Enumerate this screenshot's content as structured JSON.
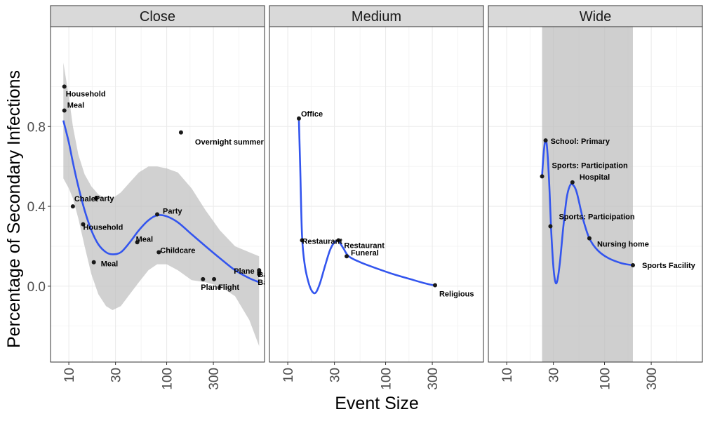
{
  "chart_data": {
    "type": "scatter",
    "xlabel": "Event Size",
    "ylabel": "Percentage of Secondary Infections",
    "x_scale": "log10",
    "xlim": [
      6.5,
      1000
    ],
    "ylim": [
      -0.38,
      1.3
    ],
    "x_ticks": [
      10,
      30,
      100,
      300
    ],
    "x_tick_labels": [
      "10",
      "30",
      "100",
      "300"
    ],
    "y_ticks": [
      0.0,
      0.4,
      0.8
    ],
    "y_tick_labels": [
      "0.0",
      "0.4",
      "0.8"
    ],
    "colors": {
      "smooth": "#3355ee",
      "ribbon": "#bdbdbd",
      "point": "#1a1a1a",
      "strip_bg": "#d9d9d9",
      "grid": "#ebebeb"
    },
    "panels": [
      {
        "title": "Close",
        "points": [
          {
            "x": 9,
            "y": 1.0,
            "label": "Household"
          },
          {
            "x": 9,
            "y": 0.88,
            "label": "Meal"
          },
          {
            "x": 140,
            "y": 0.77,
            "label": "Overnight summer camp"
          },
          {
            "x": 19,
            "y": 0.44,
            "label": "Party"
          },
          {
            "x": 11,
            "y": 0.4,
            "label": "Chalet"
          },
          {
            "x": 14,
            "y": 0.31,
            "label": "Household"
          },
          {
            "x": 80,
            "y": 0.36,
            "label": "Party"
          },
          {
            "x": 50,
            "y": 0.22,
            "label": "Meal"
          },
          {
            "x": 83,
            "y": 0.17,
            "label": "Childcare"
          },
          {
            "x": 18,
            "y": 0.12,
            "label": "Meal"
          },
          {
            "x": 235,
            "y": 0.035,
            "label": "Plane"
          },
          {
            "x": 305,
            "y": 0.035,
            "label": "Flight"
          },
          {
            "x": 880,
            "y": 0.08,
            "label": "Plane"
          },
          {
            "x": 880,
            "y": 0.07,
            "label": "Bar"
          },
          {
            "x": 880,
            "y": 0.06,
            "label": "Bar"
          }
        ],
        "smooth": [
          {
            "x": 8.8,
            "y": 0.83
          },
          {
            "x": 10,
            "y": 0.72
          },
          {
            "x": 11,
            "y": 0.62
          },
          {
            "x": 12.5,
            "y": 0.5
          },
          {
            "x": 14.5,
            "y": 0.38
          },
          {
            "x": 17,
            "y": 0.28
          },
          {
            "x": 20,
            "y": 0.21
          },
          {
            "x": 24,
            "y": 0.17
          },
          {
            "x": 28,
            "y": 0.16
          },
          {
            "x": 34,
            "y": 0.17
          },
          {
            "x": 42,
            "y": 0.22
          },
          {
            "x": 52,
            "y": 0.28
          },
          {
            "x": 65,
            "y": 0.33
          },
          {
            "x": 80,
            "y": 0.355
          },
          {
            "x": 100,
            "y": 0.35
          },
          {
            "x": 130,
            "y": 0.32
          },
          {
            "x": 180,
            "y": 0.26
          },
          {
            "x": 250,
            "y": 0.2
          },
          {
            "x": 350,
            "y": 0.14
          },
          {
            "x": 500,
            "y": 0.08
          },
          {
            "x": 700,
            "y": 0.04
          },
          {
            "x": 880,
            "y": 0.02
          }
        ],
        "ribbon_upper": [
          {
            "x": 8.8,
            "y": 1.12
          },
          {
            "x": 10,
            "y": 0.95
          },
          {
            "x": 11,
            "y": 0.8
          },
          {
            "x": 12.5,
            "y": 0.66
          },
          {
            "x": 14.5,
            "y": 0.56
          },
          {
            "x": 17,
            "y": 0.5
          },
          {
            "x": 20,
            "y": 0.46
          },
          {
            "x": 24,
            "y": 0.44
          },
          {
            "x": 28,
            "y": 0.44
          },
          {
            "x": 34,
            "y": 0.47
          },
          {
            "x": 42,
            "y": 0.52
          },
          {
            "x": 52,
            "y": 0.57
          },
          {
            "x": 65,
            "y": 0.6
          },
          {
            "x": 80,
            "y": 0.6
          },
          {
            "x": 100,
            "y": 0.59
          },
          {
            "x": 130,
            "y": 0.57
          },
          {
            "x": 180,
            "y": 0.49
          },
          {
            "x": 250,
            "y": 0.38
          },
          {
            "x": 350,
            "y": 0.28
          },
          {
            "x": 500,
            "y": 0.2
          },
          {
            "x": 700,
            "y": 0.17
          },
          {
            "x": 880,
            "y": 0.15
          }
        ],
        "ribbon_lower": [
          {
            "x": 8.8,
            "y": 0.54
          },
          {
            "x": 10,
            "y": 0.49
          },
          {
            "x": 11,
            "y": 0.44
          },
          {
            "x": 12.5,
            "y": 0.34
          },
          {
            "x": 14.5,
            "y": 0.2
          },
          {
            "x": 17,
            "y": 0.06
          },
          {
            "x": 20,
            "y": -0.04
          },
          {
            "x": 24,
            "y": -0.1
          },
          {
            "x": 28,
            "y": -0.12
          },
          {
            "x": 34,
            "y": -0.1
          },
          {
            "x": 42,
            "y": -0.04
          },
          {
            "x": 52,
            "y": 0.02
          },
          {
            "x": 65,
            "y": 0.08
          },
          {
            "x": 80,
            "y": 0.11
          },
          {
            "x": 100,
            "y": 0.11
          },
          {
            "x": 130,
            "y": 0.08
          },
          {
            "x": 180,
            "y": 0.03
          },
          {
            "x": 250,
            "y": 0.02
          },
          {
            "x": 350,
            "y": 0.0
          },
          {
            "x": 500,
            "y": -0.05
          },
          {
            "x": 700,
            "y": -0.17
          },
          {
            "x": 880,
            "y": -0.3
          }
        ]
      },
      {
        "title": "Medium",
        "points": [
          {
            "x": 13,
            "y": 0.84,
            "label": "Office"
          },
          {
            "x": 14,
            "y": 0.23,
            "label": "Restaurant"
          },
          {
            "x": 33,
            "y": 0.23,
            "label": "Restaurant"
          },
          {
            "x": 40,
            "y": 0.15,
            "label": "Funeral"
          },
          {
            "x": 320,
            "y": 0.005,
            "label": "Religious"
          }
        ],
        "smooth": [
          {
            "x": 13,
            "y": 0.83
          },
          {
            "x": 13.4,
            "y": 0.6
          },
          {
            "x": 14,
            "y": 0.25
          },
          {
            "x": 15,
            "y": 0.1
          },
          {
            "x": 16.5,
            "y": 0.01
          },
          {
            "x": 18,
            "y": -0.03
          },
          {
            "x": 19.5,
            "y": -0.03
          },
          {
            "x": 21.5,
            "y": 0.02
          },
          {
            "x": 24,
            "y": 0.1
          },
          {
            "x": 27,
            "y": 0.18
          },
          {
            "x": 30,
            "y": 0.22
          },
          {
            "x": 33,
            "y": 0.225
          },
          {
            "x": 37,
            "y": 0.19
          },
          {
            "x": 42,
            "y": 0.15
          },
          {
            "x": 55,
            "y": 0.12
          },
          {
            "x": 80,
            "y": 0.09
          },
          {
            "x": 120,
            "y": 0.06
          },
          {
            "x": 180,
            "y": 0.035
          },
          {
            "x": 250,
            "y": 0.015
          },
          {
            "x": 320,
            "y": 0.003
          }
        ]
      },
      {
        "title": "Wide",
        "points": [
          {
            "x": 25,
            "y": 0.73,
            "label": "School: Primary"
          },
          {
            "x": 23,
            "y": 0.55,
            "label": "Sports: Participation"
          },
          {
            "x": 47,
            "y": 0.52,
            "label": "Hospital"
          },
          {
            "x": 28,
            "y": 0.3,
            "label": "Sports: Participation"
          },
          {
            "x": 70,
            "y": 0.24,
            "label": "Nursing home"
          },
          {
            "x": 195,
            "y": 0.105,
            "label": "Sports Facility"
          }
        ],
        "smooth": [
          {
            "x": 23,
            "y": 0.55
          },
          {
            "x": 23.7,
            "y": 0.65
          },
          {
            "x": 24.4,
            "y": 0.71
          },
          {
            "x": 25,
            "y": 0.73
          },
          {
            "x": 25.8,
            "y": 0.7
          },
          {
            "x": 27,
            "y": 0.55
          },
          {
            "x": 28.5,
            "y": 0.28
          },
          {
            "x": 30,
            "y": 0.1
          },
          {
            "x": 31.5,
            "y": 0.02
          },
          {
            "x": 33,
            "y": 0.03
          },
          {
            "x": 35,
            "y": 0.12
          },
          {
            "x": 38,
            "y": 0.3
          },
          {
            "x": 41,
            "y": 0.44
          },
          {
            "x": 44,
            "y": 0.5
          },
          {
            "x": 47,
            "y": 0.51
          },
          {
            "x": 52,
            "y": 0.47
          },
          {
            "x": 60,
            "y": 0.34
          },
          {
            "x": 70,
            "y": 0.24
          },
          {
            "x": 85,
            "y": 0.18
          },
          {
            "x": 110,
            "y": 0.14
          },
          {
            "x": 150,
            "y": 0.115
          },
          {
            "x": 195,
            "y": 0.105
          }
        ],
        "band_x": [
          23,
          195
        ]
      }
    ]
  }
}
